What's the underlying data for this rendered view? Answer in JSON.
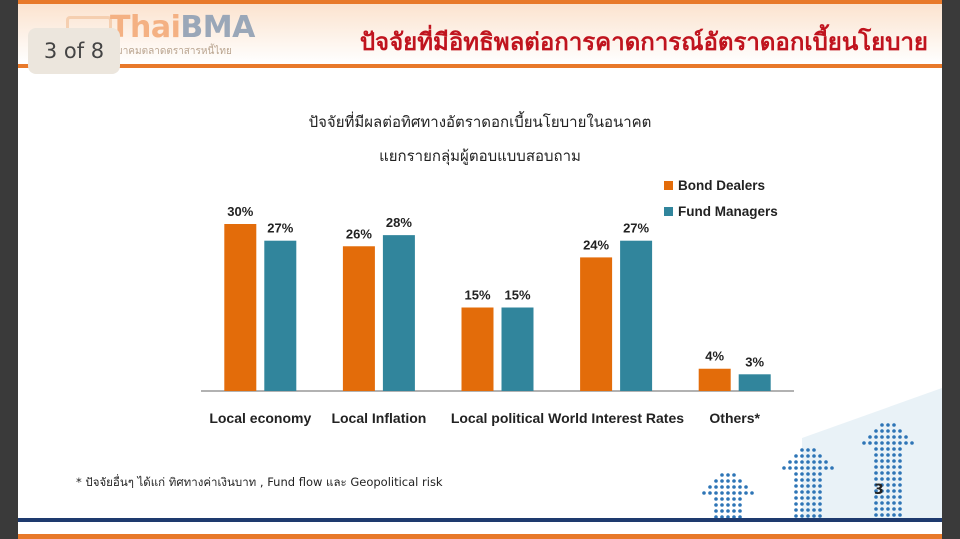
{
  "header": {
    "logo_text_thai": "Thai",
    "logo_text_bma": "BMA",
    "logo_subtitle": "สมาคมตลาดตราสารหนี้ไทย",
    "page_badge": "3 of 8",
    "title": "ปัจจัยที่มีอิทธิพลต่อการคาดการณ์อัตราดอกเบี้ยนโยบาย"
  },
  "chart_data": {
    "type": "bar",
    "title": "ปัจจัยที่มีผลต่อทิศทางอัตราดอกเบี้ยนโยบายในอนาคต",
    "subtitle": "แยกรายกลุ่มผู้ตอบแบบสอบถาม",
    "categories": [
      "Local economy",
      "Local Inflation",
      "Local political",
      "World Interest Rates",
      "Others*"
    ],
    "series": [
      {
        "name": "Bond Dealers",
        "values": [
          30,
          26,
          15,
          24,
          4
        ],
        "labels": [
          "30%",
          "26%",
          "15%",
          "24%",
          "4%"
        ],
        "color": "#e36c0a"
      },
      {
        "name": "Fund Managers",
        "values": [
          27,
          28,
          15,
          27,
          3
        ],
        "labels": [
          "27%",
          "28%",
          "15%",
          "27%",
          "3%"
        ],
        "color": "#31859c"
      }
    ],
    "ylim": [
      0,
      30
    ],
    "legend_position": "top-right",
    "grid": false
  },
  "footnote": "* ปัจจัยอื่นๆ ได้แก่ ทิศทางค่าเงินบาท , Fund flow และ Geopolitical risk",
  "slide_number": "3",
  "colors": {
    "accent_orange": "#e8792a",
    "title_red": "#c0141e",
    "footer_navy": "#1e3a6e",
    "decor_blue": "#2e75b6"
  }
}
